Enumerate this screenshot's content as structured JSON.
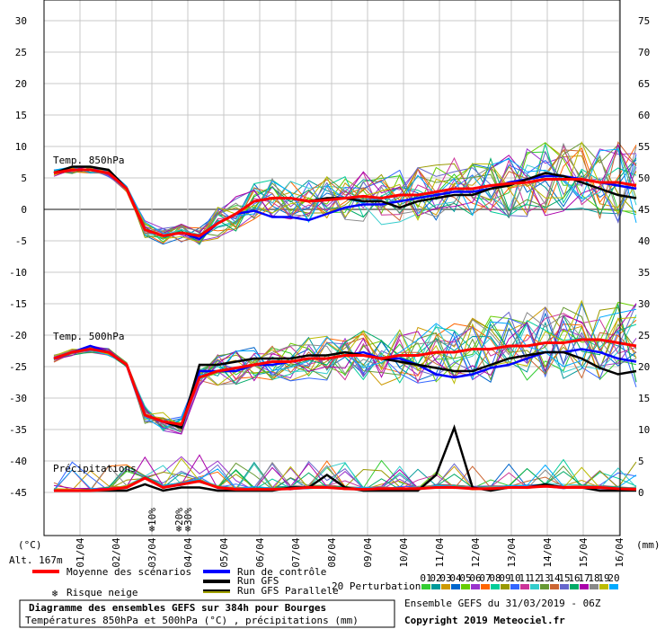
{
  "chart_data": {
    "type": "line",
    "title": "Diagramme des ensembles GEFS sur 384h pour Bourges",
    "subtitle": "Températures 850hPa et 500hPa (°C) , précipitations (mm)",
    "run_info": "Ensemble GEFS du 31/03/2019 - 06Z",
    "copyright": "Copyright 2019 Meteociel.fr",
    "left_unit": "(°C)",
    "right_unit": "(mm)",
    "altitude": "Alt. 167m",
    "left_ticks": [
      "30",
      "25",
      "20",
      "15",
      "10",
      "5",
      "0",
      "-5",
      "-10",
      "-15",
      "-20",
      "-25",
      "-30",
      "-35",
      "-40",
      "-45"
    ],
    "right_ticks": [
      "75",
      "70",
      "65",
      "60",
      "55",
      "50",
      "45",
      "40",
      "35",
      "30",
      "25",
      "20",
      "15",
      "10",
      "5",
      "0"
    ],
    "x_labels": [
      "01/04",
      "02/04",
      "03/04",
      "04/04",
      "05/04",
      "06/04",
      "07/04",
      "08/04",
      "09/04",
      "10/04",
      "11/04",
      "12/04",
      "13/04",
      "14/04",
      "15/04",
      "16/04"
    ],
    "panel_labels": [
      "Temp. 850hPa",
      "Temp. 500hPa",
      "Précipitations"
    ],
    "legend": {
      "mean": "Moyenne des scénarios",
      "control": "Run de contrôle",
      "gfs": "Run GFS",
      "gfs_parallel": "Run GFS Parallele",
      "snow": "Risque neige",
      "perturbations": "20 Perturbations",
      "perturbation_ids": [
        "01",
        "02",
        "03",
        "04",
        "05",
        "06",
        "07",
        "08",
        "09",
        "10",
        "11",
        "12",
        "13",
        "14",
        "15",
        "16",
        "17",
        "18",
        "19",
        "20"
      ]
    },
    "snow_risk": [
      {
        "time": "03/04",
        "label": "10%"
      },
      {
        "time": "04/04",
        "label": "20%"
      },
      {
        "time": "04/04",
        "label": "30%"
      }
    ],
    "colors": {
      "mean": "#ff0000",
      "control": "#0000ff",
      "gfs": "#000000",
      "gfs_parallel": "#a0a000",
      "snow": "#3399ff",
      "perturbations": [
        "#33cc33",
        "#009999",
        "#cc9900",
        "#0066cc",
        "#66cc00",
        "#9933cc",
        "#ff6600",
        "#00cc99",
        "#999900",
        "#3366ff",
        "#cc3399",
        "#33cccc",
        "#669933",
        "#cc6633",
        "#6666cc",
        "#00aa66",
        "#aa00aa",
        "#888888",
        "#bbbb00",
        "#00aaff"
      ]
    },
    "x_time_days": [
      0,
      0.5,
      1,
      1.5,
      2,
      2.5,
      3,
      3.5,
      4,
      4.5,
      5,
      5.5,
      6,
      6.5,
      7,
      7.5,
      8,
      8.5,
      9,
      9.5,
      10,
      10.5,
      11,
      11.5,
      12,
      12.5,
      13,
      13.5,
      14,
      14.5,
      15,
      15.5,
      16
    ],
    "series": [
      {
        "name": "Moyenne des scénarios",
        "panel": "850hPa",
        "values": [
          5.5,
          6,
          6,
          5.5,
          3,
          -3.5,
          -4.5,
          -4,
          -4.5,
          -2.5,
          -1,
          1,
          1.5,
          1.5,
          1,
          1.2,
          1.5,
          1.8,
          1.5,
          2,
          2,
          2.5,
          3,
          3,
          3.5,
          3.8,
          4,
          4.5,
          4.5,
          4.5,
          4,
          4,
          3.5
        ]
      },
      {
        "name": "Run de contrôle",
        "panel": "850hPa",
        "values": [
          5.5,
          6,
          6,
          5.5,
          3,
          -3.5,
          -4.5,
          -4,
          -5,
          -2.5,
          -1,
          -0.5,
          -1.5,
          -1.5,
          -2,
          -1,
          0,
          0.5,
          0.5,
          1,
          1.5,
          2,
          2.5,
          2.5,
          3,
          4,
          4.5,
          5,
          5,
          4.5,
          4,
          3.5,
          3
        ]
      },
      {
        "name": "Run GFS",
        "panel": "850hPa",
        "values": [
          5.5,
          6.5,
          6.5,
          6,
          3,
          -3.5,
          -4.5,
          -4,
          -4.5,
          -2.5,
          -1,
          1,
          1.5,
          1.5,
          1,
          1.5,
          1.5,
          1,
          1,
          0,
          1,
          1.5,
          2,
          2,
          3,
          3.5,
          4.5,
          5.5,
          5,
          4,
          3,
          2,
          1.5
        ]
      },
      {
        "name": "Moyenne des scénarios",
        "panel": "500hPa",
        "values": [
          -24,
          -23,
          -22.5,
          -23,
          -25,
          -33,
          -34,
          -34.5,
          -27,
          -26,
          -25.5,
          -25,
          -24.5,
          -24.5,
          -24,
          -24,
          -23.5,
          -23.5,
          -24,
          -23.5,
          -23.5,
          -23,
          -23,
          -22.5,
          -22.5,
          -22,
          -22,
          -21.5,
          -21.5,
          -21,
          -21,
          -21.5,
          -22
        ]
      },
      {
        "name": "Run de contrôle",
        "panel": "500hPa",
        "values": [
          -24,
          -23,
          -22,
          -23,
          -25,
          -33,
          -34,
          -35,
          -26,
          -26,
          -26,
          -25,
          -25,
          -24.5,
          -24,
          -24,
          -23.5,
          -23,
          -24,
          -24,
          -25,
          -26.5,
          -27,
          -26.5,
          -25.5,
          -25,
          -24,
          -23,
          -23,
          -22.5,
          -23,
          -24,
          -24.5
        ]
      },
      {
        "name": "Run GFS",
        "panel": "500hPa",
        "values": [
          -24,
          -23,
          -22.5,
          -23,
          -25,
          -33,
          -34,
          -35,
          -25,
          -25,
          -24.5,
          -24,
          -24,
          -24,
          -23.5,
          -23.5,
          -23,
          -23.5,
          -24,
          -24.5,
          -25,
          -25.5,
          -26,
          -26,
          -25,
          -24,
          -23.5,
          -23,
          -23,
          -24,
          -25.5,
          -26.5,
          -26
        ]
      },
      {
        "name": "Moyenne des scénarios",
        "panel": "precip",
        "values": [
          0,
          0,
          0,
          0.2,
          0.5,
          2,
          0.5,
          1,
          1.5,
          0.5,
          0.2,
          0.2,
          0.2,
          0.3,
          0.5,
          0.5,
          0.3,
          0.2,
          0.3,
          0.3,
          0.3,
          0.5,
          0.5,
          0.3,
          0.3,
          0.5,
          0.5,
          0.7,
          0.5,
          0.5,
          0.5,
          0.3,
          0.2
        ]
      },
      {
        "name": "Run GFS",
        "panel": "precip",
        "values": [
          0,
          0,
          0,
          0,
          0,
          1,
          0,
          0.5,
          0.5,
          0,
          0,
          0,
          0,
          0.5,
          0.5,
          2.5,
          0.5,
          0,
          0,
          0,
          0,
          2.5,
          10,
          0.5,
          0,
          0.5,
          0.5,
          1,
          0.5,
          0.5,
          0,
          0,
          0
        ]
      }
    ]
  }
}
